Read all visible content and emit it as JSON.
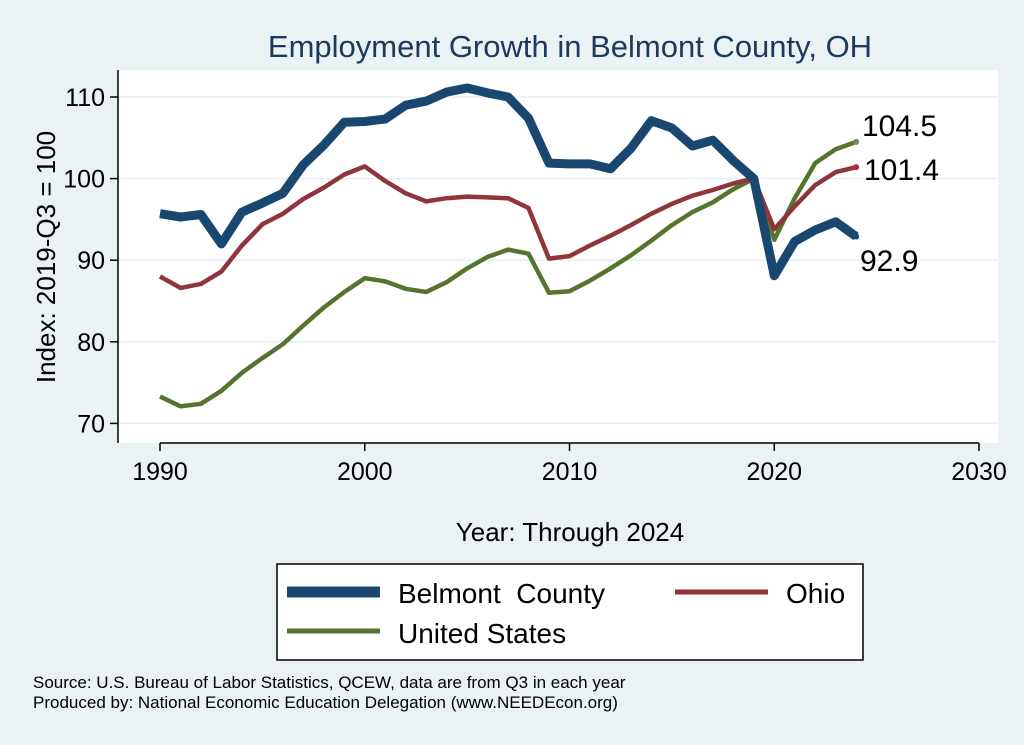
{
  "chart_data": {
    "type": "line",
    "title": "Employment Growth in Belmont County, OH",
    "xlabel": "Year: Through 2024",
    "ylabel": "Index: 2019-Q3 = 100",
    "xlim": [
      1990,
      2030
    ],
    "ylim": [
      68,
      113
    ],
    "xticks": [
      1990,
      2000,
      2010,
      2020,
      2030
    ],
    "yticks": [
      70,
      80,
      90,
      100,
      110
    ],
    "grid": true,
    "legend_position": "bottom",
    "x": [
      1990,
      1991,
      1992,
      1993,
      1994,
      1995,
      1996,
      1997,
      1998,
      1999,
      2000,
      2001,
      2002,
      2003,
      2004,
      2005,
      2006,
      2007,
      2008,
      2009,
      2010,
      2011,
      2012,
      2013,
      2014,
      2015,
      2016,
      2017,
      2018,
      2019,
      2020,
      2021,
      2022,
      2023,
      2024
    ],
    "series": [
      {
        "name": "Belmont  County",
        "color": "#1a476f",
        "values": [
          95.7,
          95.3,
          95.6,
          92.0,
          95.9,
          97.0,
          98.2,
          101.7,
          104.1,
          106.9,
          107.0,
          107.3,
          109.0,
          109.5,
          110.6,
          111.1,
          110.5,
          110.0,
          107.4,
          101.9,
          101.8,
          101.8,
          101.2,
          103.7,
          107.1,
          106.2,
          104.0,
          104.7,
          102.2,
          100.0,
          88.1,
          92.3,
          93.7,
          94.7,
          92.9
        ],
        "end_label": "92.9"
      },
      {
        "name": "Ohio",
        "color": "#90353b",
        "values": [
          88.0,
          86.6,
          87.1,
          88.6,
          91.8,
          94.4,
          95.7,
          97.5,
          98.9,
          100.5,
          101.5,
          99.7,
          98.2,
          97.2,
          97.6,
          97.8,
          97.7,
          97.6,
          96.4,
          90.2,
          90.5,
          91.8,
          93.0,
          94.3,
          95.7,
          96.9,
          97.9,
          98.6,
          99.4,
          100.0,
          93.8,
          96.6,
          99.2,
          100.8,
          101.4
        ],
        "end_label": "101.4"
      },
      {
        "name": "United States",
        "color": "#55752f",
        "values": [
          73.3,
          72.1,
          72.4,
          74.0,
          76.2,
          78.0,
          79.7,
          82.0,
          84.2,
          86.1,
          87.8,
          87.4,
          86.5,
          86.1,
          87.3,
          89.0,
          90.4,
          91.3,
          90.8,
          86.0,
          86.2,
          87.5,
          89.0,
          90.6,
          92.4,
          94.3,
          95.9,
          97.1,
          98.7,
          100.0,
          92.5,
          97.6,
          101.9,
          103.6,
          104.5
        ],
        "end_label": "104.5"
      }
    ]
  },
  "source_line": "Source: U.S. Bureau of Labor Statistics, QCEW, data are from Q3 in each year",
  "produced_line": "Produced by: National Economic Education Delegation (www.NEEDEcon.org)"
}
